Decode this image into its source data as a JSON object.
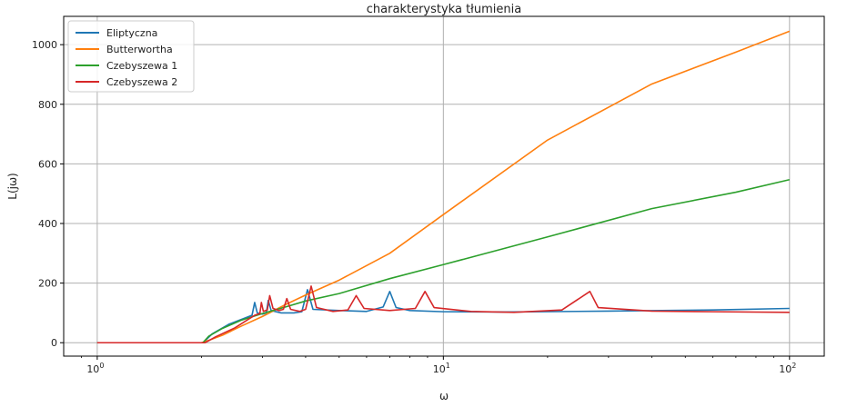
{
  "chart_data": {
    "type": "line",
    "title": "charakterystyka tłumienia",
    "xlabel": "ω",
    "ylabel": "L(jω)",
    "xscale": "log",
    "xlim": [
      0.8,
      126
    ],
    "ylim": [
      -45,
      1095
    ],
    "xticks": [
      {
        "value": 1,
        "base": "10",
        "exp": "0"
      },
      {
        "value": 10,
        "base": "10",
        "exp": "1"
      },
      {
        "value": 100,
        "base": "10",
        "exp": "2"
      }
    ],
    "yticks": [
      0,
      200,
      400,
      600,
      800,
      1000
    ],
    "grid": true,
    "legend": "top-left",
    "series": [
      {
        "name": "Eliptyczna",
        "color": "#1f77b4",
        "points": [
          [
            1,
            0
          ],
          [
            1.5,
            0
          ],
          [
            2.02,
            0
          ],
          [
            2.15,
            30
          ],
          [
            2.4,
            62
          ],
          [
            2.7,
            85
          ],
          [
            2.8,
            92
          ],
          [
            2.85,
            135
          ],
          [
            2.9,
            100
          ],
          [
            3.0,
            96
          ],
          [
            3.08,
            100
          ],
          [
            3.12,
            142
          ],
          [
            3.18,
            108
          ],
          [
            3.4,
            100
          ],
          [
            3.7,
            100
          ],
          [
            3.9,
            104
          ],
          [
            4.05,
            178
          ],
          [
            4.2,
            112
          ],
          [
            5,
            108
          ],
          [
            6,
            105
          ],
          [
            6.7,
            120
          ],
          [
            7.0,
            172
          ],
          [
            7.3,
            118
          ],
          [
            8,
            108
          ],
          [
            10,
            104
          ],
          [
            15,
            103
          ],
          [
            30,
            106
          ],
          [
            60,
            110
          ],
          [
            100,
            115
          ]
        ]
      },
      {
        "name": "Butterwortha",
        "color": "#ff7f0e",
        "points": [
          [
            1,
            0
          ],
          [
            1.5,
            0
          ],
          [
            2.0,
            0
          ],
          [
            2.1,
            8
          ],
          [
            2.3,
            25
          ],
          [
            2.6,
            55
          ],
          [
            3.0,
            88
          ],
          [
            3.5,
            128
          ],
          [
            4.0,
            160
          ],
          [
            5.0,
            210
          ],
          [
            7.0,
            300
          ],
          [
            10,
            430
          ],
          [
            20,
            680
          ],
          [
            40,
            868
          ],
          [
            70,
            975
          ],
          [
            100,
            1045
          ]
        ]
      },
      {
        "name": "Czebyszewa 1",
        "color": "#2ca02c",
        "points": [
          [
            1,
            0
          ],
          [
            1.5,
            0
          ],
          [
            2.02,
            0
          ],
          [
            2.1,
            22
          ],
          [
            2.3,
            48
          ],
          [
            2.6,
            75
          ],
          [
            3.0,
            98
          ],
          [
            3.5,
            120
          ],
          [
            4.0,
            140
          ],
          [
            5.0,
            165
          ],
          [
            7.0,
            215
          ],
          [
            10,
            262
          ],
          [
            20,
            355
          ],
          [
            40,
            450
          ],
          [
            70,
            505
          ],
          [
            100,
            547
          ]
        ]
      },
      {
        "name": "Czebyszewa 2",
        "color": "#d62728",
        "points": [
          [
            1,
            0
          ],
          [
            1.5,
            0
          ],
          [
            2.05,
            0
          ],
          [
            2.2,
            20
          ],
          [
            2.5,
            50
          ],
          [
            2.85,
            92
          ],
          [
            2.95,
            98
          ],
          [
            2.98,
            135
          ],
          [
            3.02,
            105
          ],
          [
            3.1,
            110
          ],
          [
            3.15,
            158
          ],
          [
            3.22,
            115
          ],
          [
            3.35,
            108
          ],
          [
            3.45,
            112
          ],
          [
            3.53,
            148
          ],
          [
            3.62,
            112
          ],
          [
            3.85,
            105
          ],
          [
            4.0,
            112
          ],
          [
            4.15,
            190
          ],
          [
            4.3,
            118
          ],
          [
            4.8,
            105
          ],
          [
            5.3,
            110
          ],
          [
            5.6,
            158
          ],
          [
            5.9,
            115
          ],
          [
            7.0,
            108
          ],
          [
            8.3,
            115
          ],
          [
            8.85,
            172
          ],
          [
            9.4,
            118
          ],
          [
            12,
            105
          ],
          [
            16,
            102
          ],
          [
            22,
            110
          ],
          [
            26.5,
            172
          ],
          [
            28,
            118
          ],
          [
            40,
            106
          ],
          [
            60,
            104
          ],
          [
            100,
            102
          ]
        ]
      }
    ]
  }
}
